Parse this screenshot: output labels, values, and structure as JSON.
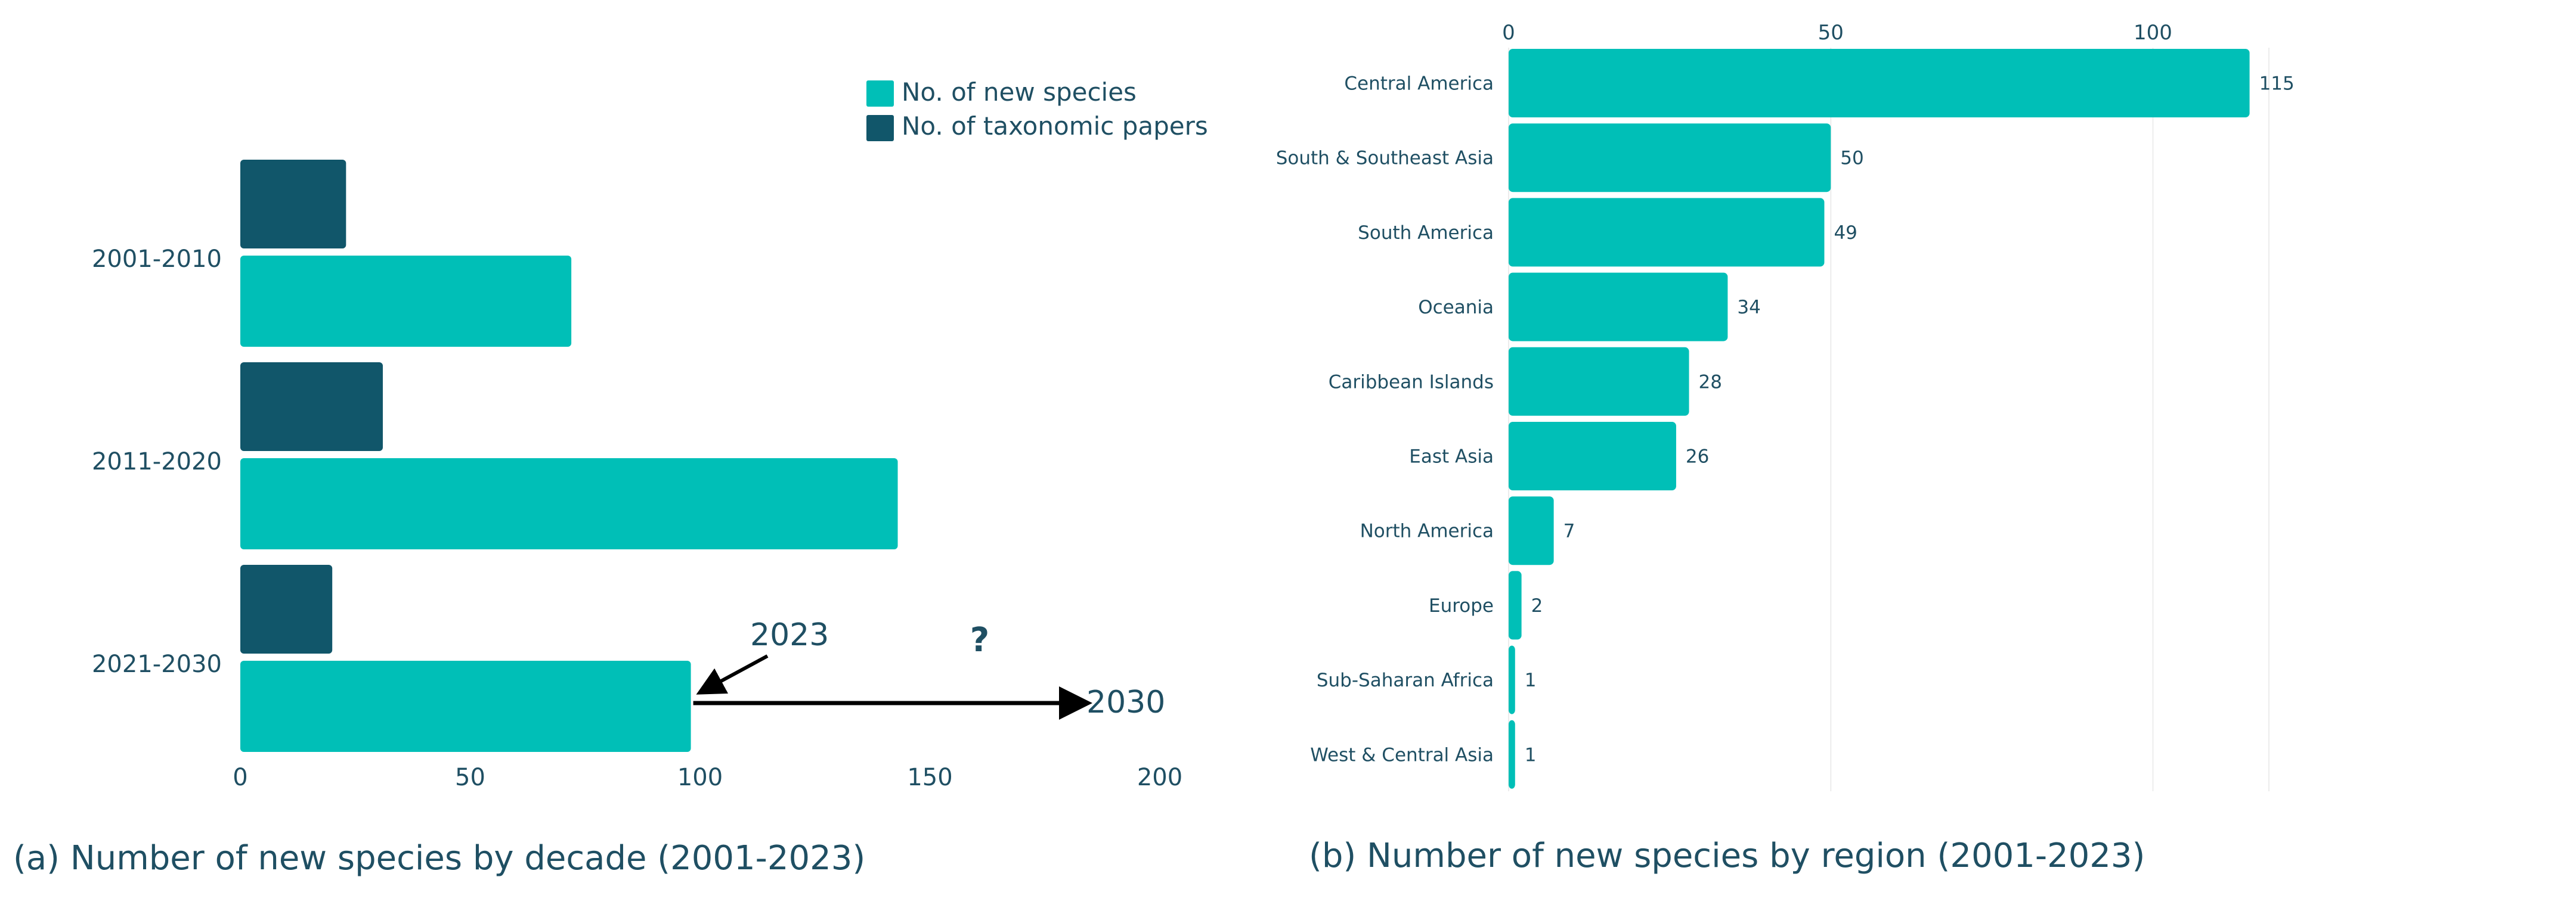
{
  "colors": {
    "new_species": "#00bfb7",
    "papers": "#11566a",
    "text": "#1f4f63",
    "annotation": "#000000"
  },
  "chart_data": [
    {
      "id": "decade",
      "type": "bar",
      "orientation": "horizontal",
      "categories": [
        "2001-2010",
        "2011-2020",
        "2021-2030"
      ],
      "series": [
        {
          "name": "No. of taxonomic papers",
          "values": [
            23,
            31,
            20
          ]
        },
        {
          "name": "No. of new species",
          "values": [
            72,
            143,
            98
          ]
        }
      ],
      "xlim": [
        0,
        200
      ],
      "xticks": [
        "0",
        "50",
        "100",
        "150",
        "200"
      ],
      "legend": [
        "No. of new species",
        "No. of taxonomic papers"
      ],
      "legend_position": "top-right",
      "annotations": {
        "current": "2023",
        "target": "2030",
        "question": "?"
      },
      "caption": "(a) Number of new species by decade (2001-2023)"
    },
    {
      "id": "region",
      "type": "bar",
      "orientation": "horizontal",
      "categories": [
        "Central America",
        "South & Southeast Asia",
        "South America",
        "Oceania",
        "Caribbean Islands",
        "East Asia",
        "North America",
        "Europe",
        "Sub-Saharan Africa",
        "West & Central Asia"
      ],
      "values": [
        115,
        50,
        49,
        34,
        28,
        26,
        7,
        2,
        1,
        1
      ],
      "xlim": [
        0,
        118
      ],
      "xticks": [
        "0",
        "50",
        "100"
      ],
      "tick_values": [
        0,
        50,
        100
      ],
      "axis_position": "top",
      "grid": true,
      "caption": "(b) Number of new species by region (2001-2023)"
    }
  ]
}
